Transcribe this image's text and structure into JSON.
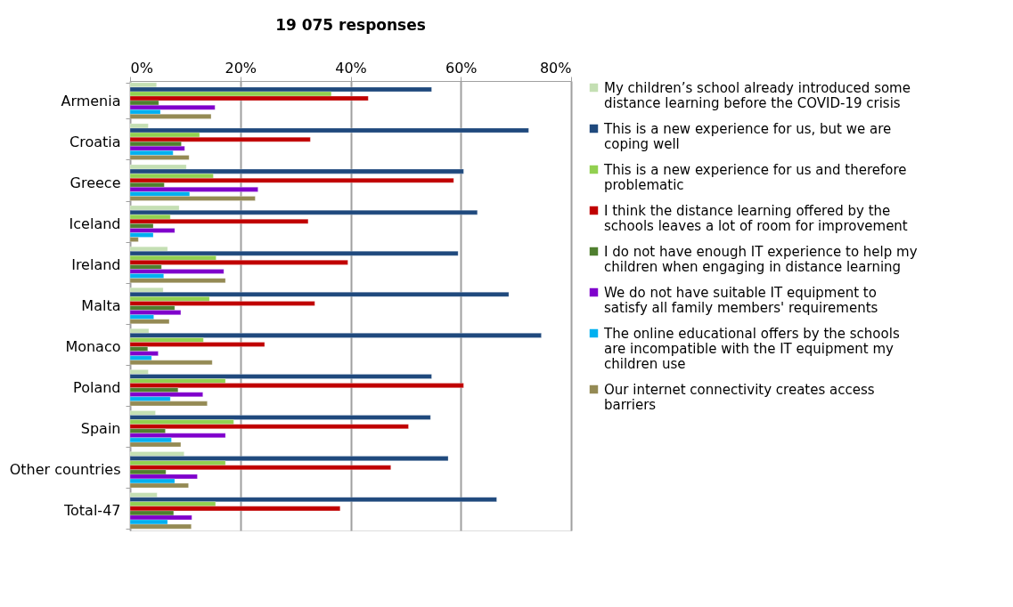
{
  "chart_data": {
    "type": "bar",
    "orientation": "horizontal",
    "title": "19 075 responses",
    "categories": [
      "Armenia",
      "Croatia",
      "Greece",
      "Iceland",
      "Ireland",
      "Malta",
      "Monaco",
      "Poland",
      "Spain",
      "Other countries",
      "Total-47"
    ],
    "xlim": [
      0,
      80
    ],
    "xticks": [
      {
        "value": 0,
        "label": "0%"
      },
      {
        "value": 20,
        "label": "20%"
      },
      {
        "value": 40,
        "label": "40%"
      },
      {
        "value": 60,
        "label": "60%"
      },
      {
        "value": 80,
        "label": "80%"
      }
    ],
    "grid": "x",
    "legend": "right",
    "series": [
      {
        "name": "My children’s school already introduced some distance learning before the COVID-19 crisis",
        "color": "#c4dfb3",
        "values": [
          4.8,
          3.3,
          10.2,
          8.9,
          6.8,
          6.0,
          3.4,
          3.3,
          4.6,
          9.8,
          4.9
        ]
      },
      {
        "name": "This is a new experience for us, but we are coping well",
        "color": "#1f497d",
        "values": [
          54.7,
          72.3,
          60.5,
          63.0,
          59.5,
          68.7,
          74.6,
          54.7,
          54.5,
          57.7,
          66.5
        ]
      },
      {
        "name": "This is a new experience for us and therefore problematic",
        "color": "#92d050",
        "values": [
          36.5,
          12.6,
          15.1,
          7.3,
          15.6,
          14.4,
          13.3,
          17.3,
          18.8,
          17.3,
          15.5
        ]
      },
      {
        "name": "I think the distance learning offered by the schools leaves a lot of room for improvement",
        "color": "#c00000",
        "values": [
          43.2,
          32.7,
          58.7,
          32.3,
          39.5,
          33.5,
          24.4,
          60.5,
          50.5,
          47.3,
          38.1
        ]
      },
      {
        "name": "I do not have enough IT experience to help my children when engaging in distance learning",
        "color": "#4f7f2f",
        "values": [
          5.2,
          9.3,
          6.2,
          4.2,
          5.7,
          8.1,
          3.2,
          8.7,
          6.4,
          6.5,
          7.9
        ]
      },
      {
        "name": "We do not have suitable IT equipment to satisfy all family members' requirements",
        "color": "#7f00cc",
        "values": [
          15.4,
          9.9,
          23.2,
          8.1,
          17.0,
          9.2,
          5.1,
          13.2,
          17.3,
          12.2,
          11.2
        ]
      },
      {
        "name": "The online educational offers by the schools are incompatible with the IT equipment my children use",
        "color": "#00b0f0",
        "values": [
          5.5,
          7.8,
          10.8,
          4.2,
          6.1,
          4.3,
          3.9,
          7.3,
          7.5,
          8.1,
          6.8
        ]
      },
      {
        "name": "Our internet connectivity creates access barriers",
        "color": "#948a54",
        "values": [
          14.7,
          10.7,
          22.7,
          1.5,
          17.3,
          7.1,
          14.9,
          14.0,
          9.2,
          10.6,
          11.1
        ]
      }
    ]
  }
}
